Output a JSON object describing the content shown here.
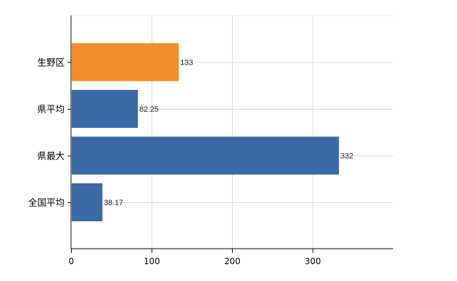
{
  "chart_data": {
    "type": "bar",
    "orientation": "horizontal",
    "categories": [
      "生野区",
      "県平均",
      "県最大",
      "全国平均"
    ],
    "values": [
      133,
      82.25,
      332,
      38.17
    ],
    "value_labels": [
      "133",
      "82.25",
      "332",
      "38.17"
    ],
    "bar_colors": [
      "#f28e2b",
      "#3b6aa6",
      "#3b6aa6",
      "#3b6aa6"
    ],
    "highlight_color": "#f28e2b",
    "default_color": "#3b6aa6",
    "xlim": [
      0,
      400
    ],
    "x_ticks": [
      0,
      100,
      200,
      300
    ],
    "grid": true,
    "title": "",
    "xlabel": "",
    "ylabel": ""
  }
}
